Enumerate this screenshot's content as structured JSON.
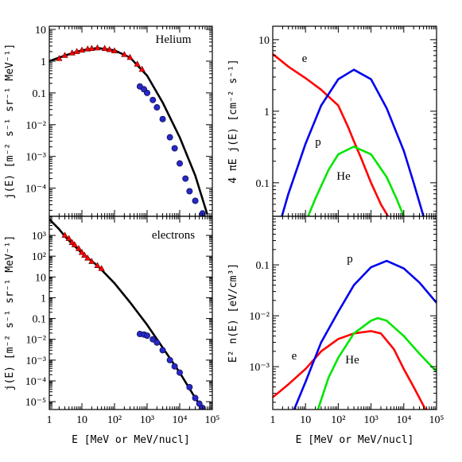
{
  "chart_data": [
    {
      "type": "line",
      "annotation": "Helium",
      "log_x": true,
      "log_y": true,
      "show_xtick_labels": false,
      "xlim": [
        1,
        100000
      ],
      "ylim": [
        1.3e-05,
        12.6
      ],
      "xticks": [
        1,
        10,
        100,
        1000,
        10000,
        100000
      ],
      "yticks": [
        10,
        1,
        0.1,
        {
          "value": 0.01,
          "label": "10⁻²"
        },
        {
          "value": 0.001,
          "label": "10⁻³"
        },
        {
          "value": 0.0001,
          "label": "10⁻⁴"
        }
      ],
      "ylabel": "j(E) [m⁻² s⁻¹ sr⁻¹ MeV⁻¹]",
      "series": [
        {
          "color": "#000000",
          "marker": "none",
          "x": [
            1,
            3,
            10,
            30,
            100,
            300,
            1000,
            3000,
            10000,
            30000,
            70000
          ],
          "values": [
            1.0,
            1.5,
            2.2,
            2.6,
            2.2,
            1.3,
            0.35,
            0.05,
            0.004,
            0.00025,
            1.5e-05
          ]
        },
        {
          "color": "#ff0000",
          "marker": "triangle",
          "x": [
            2,
            3,
            5,
            7,
            10,
            15,
            20,
            30,
            50,
            70,
            100,
            200,
            300,
            500,
            700
          ],
          "values": [
            1.2,
            1.5,
            1.8,
            2.0,
            2.2,
            2.4,
            2.5,
            2.6,
            2.5,
            2.3,
            2.1,
            1.6,
            1.3,
            0.8,
            0.55
          ]
        },
        {
          "color": "#2828c8",
          "marker": "circle",
          "x": [
            600,
            800,
            1000,
            1500,
            2000,
            3000,
            5000,
            7000,
            10000,
            15000,
            20000,
            30000,
            50000
          ],
          "values": [
            0.16,
            0.13,
            0.1,
            0.06,
            0.035,
            0.015,
            0.004,
            0.0018,
            0.0006,
            0.0002,
            8e-05,
            4e-05,
            1.6e-05
          ]
        }
      ]
    },
    {
      "type": "line",
      "annotation": "electrons",
      "log_x": true,
      "log_y": true,
      "show_xtick_labels": true,
      "xlim": [
        1,
        100000
      ],
      "ylim": [
        4.2e-06,
        8300
      ],
      "xticks": [
        1,
        10,
        {
          "value": 100,
          "label": "10²"
        },
        {
          "value": 1000,
          "label": "10³"
        },
        {
          "value": 10000,
          "label": "10⁴"
        },
        {
          "value": 100000,
          "label": "10⁵"
        }
      ],
      "yticks": [
        {
          "value": 1000,
          "label": "10³"
        },
        {
          "value": 100,
          "label": "10²"
        },
        10,
        1,
        0.1,
        {
          "value": 0.01,
          "label": "10⁻²"
        },
        {
          "value": 0.001,
          "label": "10⁻³"
        },
        {
          "value": 0.0001,
          "label": "10⁻⁴"
        },
        {
          "value": 1e-05,
          "label": "10⁻⁵"
        }
      ],
      "xlabel": "E [MeV or MeV/nucl]",
      "ylabel": "j(E) [m⁻² s⁻¹ sr⁻¹ MeV⁻¹]",
      "series": [
        {
          "color": "#000000",
          "marker": "none",
          "x": [
            1,
            2,
            3,
            5,
            10,
            30,
            100,
            300,
            1000,
            3000,
            10000,
            30000,
            50000
          ],
          "values": [
            6000,
            2000,
            900,
            400,
            140,
            35,
            5,
            0.6,
            0.05,
            0.004,
            0.00025,
            1.5e-05,
            4.5e-06
          ]
        },
        {
          "color": "#ff0000",
          "marker": "triangle",
          "x": [
            3,
            4,
            5,
            6,
            8,
            10,
            12,
            15,
            20,
            30,
            40
          ],
          "values": [
            1000,
            700,
            450,
            350,
            230,
            150,
            110,
            80,
            55,
            35,
            25
          ]
        },
        {
          "color": "#2828c8",
          "marker": "circle",
          "x": [
            600,
            800,
            1000,
            1500,
            2000,
            3000,
            5000,
            7000,
            10000,
            20000,
            30000,
            40000,
            50000
          ],
          "values": [
            0.018,
            0.017,
            0.015,
            0.01,
            0.007,
            0.003,
            0.001,
            0.0005,
            0.00025,
            5e-05,
            1.5e-05,
            8e-06,
            5e-06
          ]
        }
      ]
    },
    {
      "type": "line",
      "log_x": true,
      "log_y": true,
      "show_xtick_labels": false,
      "xlim": [
        1,
        100000
      ],
      "ylim": [
        0.034,
        15.4
      ],
      "xticks": [
        1,
        10,
        100,
        1000,
        10000,
        100000
      ],
      "yticks": [
        10,
        1,
        0.1
      ],
      "ylabel": "4 πE j(E) [cm⁻² s⁻¹]",
      "series": [
        {
          "name": "e",
          "color": "#ff0000",
          "marker": "none",
          "x": [
            1,
            3,
            10,
            30,
            100,
            200,
            300,
            500,
            1000,
            2000,
            3300
          ],
          "values": [
            6.3,
            4.2,
            2.9,
            2.0,
            1.2,
            0.6,
            0.38,
            0.22,
            0.1,
            0.05,
            0.034
          ]
        },
        {
          "name": "p",
          "color": "#0000ee",
          "marker": "none",
          "x": [
            1.9,
            3,
            10,
            30,
            100,
            300,
            1000,
            3000,
            10000,
            20000,
            40000
          ],
          "values": [
            0.034,
            0.07,
            0.35,
            1.2,
            2.8,
            3.8,
            2.8,
            1.1,
            0.28,
            0.1,
            0.034
          ]
        },
        {
          "name": "He",
          "color": "#00e600",
          "marker": "none",
          "x": [
            12,
            20,
            50,
            100,
            300,
            1000,
            3000,
            6000,
            10000
          ],
          "values": [
            0.034,
            0.06,
            0.15,
            0.25,
            0.32,
            0.25,
            0.12,
            0.06,
            0.034
          ]
        }
      ]
    },
    {
      "type": "line",
      "log_x": true,
      "log_y": true,
      "show_xtick_labels": true,
      "xlim": [
        1,
        100000
      ],
      "ylim": [
        0.000144,
        0.9
      ],
      "xticks": [
        1,
        10,
        {
          "value": 100,
          "label": "10²"
        },
        {
          "value": 1000,
          "label": "10³"
        },
        {
          "value": 10000,
          "label": "10⁴"
        },
        {
          "value": 100000,
          "label": "10⁵"
        }
      ],
      "yticks": [
        0.1,
        {
          "value": 0.01,
          "label": "10⁻²"
        },
        {
          "value": 0.001,
          "label": "10⁻³"
        }
      ],
      "xlabel": "E [MeV or MeV/nucl]",
      "ylabel": "E² n(E) [eV/cm³]",
      "series": [
        {
          "name": "e",
          "color": "#ff0000",
          "marker": "none",
          "x": [
            1,
            3,
            10,
            30,
            100,
            300,
            1000,
            2000,
            5000,
            10000,
            20000,
            46000
          ],
          "values": [
            0.00025,
            0.00045,
            0.0009,
            0.002,
            0.0035,
            0.0045,
            0.005,
            0.0045,
            0.0022,
            0.0009,
            0.0004,
            0.000144
          ]
        },
        {
          "name": "p",
          "color": "#0000ee",
          "marker": "none",
          "x": [
            4.5,
            10,
            30,
            100,
            300,
            1000,
            3000,
            10000,
            30000,
            100000
          ],
          "values": [
            0.000144,
            0.0005,
            0.003,
            0.012,
            0.04,
            0.09,
            0.12,
            0.085,
            0.045,
            0.018
          ]
        },
        {
          "name": "He",
          "color": "#00e600",
          "marker": "none",
          "x": [
            24,
            50,
            100,
            300,
            1000,
            1600,
            3000,
            10000,
            30000,
            100000
          ],
          "values": [
            0.000144,
            0.0006,
            0.0015,
            0.0045,
            0.008,
            0.009,
            0.008,
            0.004,
            0.0018,
            0.0008
          ]
        }
      ]
    }
  ]
}
